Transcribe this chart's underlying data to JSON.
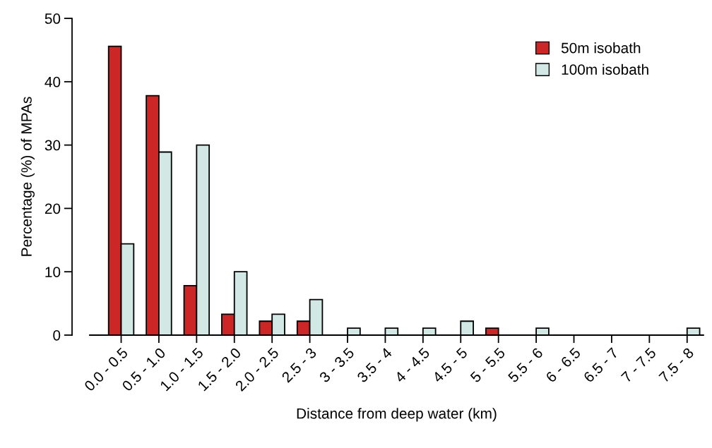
{
  "chart_data": {
    "type": "bar",
    "xlabel": "Distance from deep water (km)",
    "ylabel": "Percentage (%) of MPAs",
    "categories": [
      "0.0 - 0.5",
      "0.5 - 1.0",
      "1.0 - 1.5",
      "1.5 - 2.0",
      "2.0 - 2.5",
      "2.5 - 3",
      "3 - 3.5",
      "3.5 - 4",
      "4 - 4.5",
      "4.5 - 5",
      "5 - 5.5",
      "5.5 - 6",
      "6 - 6.5",
      "6.5 - 7",
      "7 - 7.5",
      "7.5 - 8"
    ],
    "series": [
      {
        "name": "50m isobath",
        "color": "#cd2626",
        "values": [
          45.6,
          37.8,
          7.8,
          3.3,
          2.2,
          2.2,
          0,
          0,
          0,
          0,
          1.1,
          0,
          0,
          0,
          0,
          0
        ]
      },
      {
        "name": "100m isobath",
        "color": "#d1e8e4",
        "values": [
          14.4,
          28.9,
          30,
          10,
          3.3,
          5.6,
          1.1,
          1.1,
          1.1,
          2.2,
          0,
          1.1,
          0,
          0,
          0,
          1.1
        ]
      }
    ],
    "ylim": [
      0,
      50
    ],
    "yticks": [
      0,
      10,
      20,
      30,
      40,
      50
    ],
    "grid": false,
    "legend": "top right"
  }
}
